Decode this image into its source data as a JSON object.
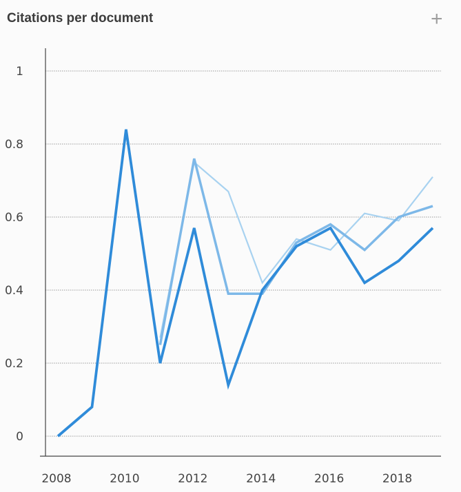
{
  "header": {
    "title": "Citations per document",
    "add_icon": "plus-icon"
  },
  "chart_data": {
    "type": "line",
    "title": "Citations per document",
    "xlabel": "",
    "ylabel": "",
    "x": [
      2008,
      2009,
      2010,
      2011,
      2012,
      2013,
      2014,
      2015,
      2016,
      2017,
      2018,
      2019
    ],
    "xticks": [
      "2008",
      "2010",
      "2012",
      "2014",
      "2016",
      "2018"
    ],
    "yticks": [
      "0",
      "0.2",
      "0.4",
      "0.6",
      "0.8",
      "1"
    ],
    "xlim": [
      2008,
      2019
    ],
    "ylim": [
      0,
      1
    ],
    "grid": true,
    "series": [
      {
        "color": "#a8d2f0",
        "values": [
          null,
          null,
          null,
          0.27,
          0.75,
          0.67,
          0.42,
          0.54,
          0.51,
          0.61,
          0.59,
          0.71
        ]
      },
      {
        "color": "#7db8e8",
        "values": [
          null,
          null,
          null,
          0.25,
          0.76,
          0.39,
          0.39,
          0.53,
          0.58,
          0.51,
          0.6,
          0.63
        ]
      },
      {
        "color": "#2f8bd9",
        "values": [
          0.0,
          0.08,
          0.84,
          0.2,
          0.57,
          0.14,
          0.4,
          0.52,
          0.57,
          0.42,
          0.48,
          0.57
        ]
      }
    ]
  }
}
